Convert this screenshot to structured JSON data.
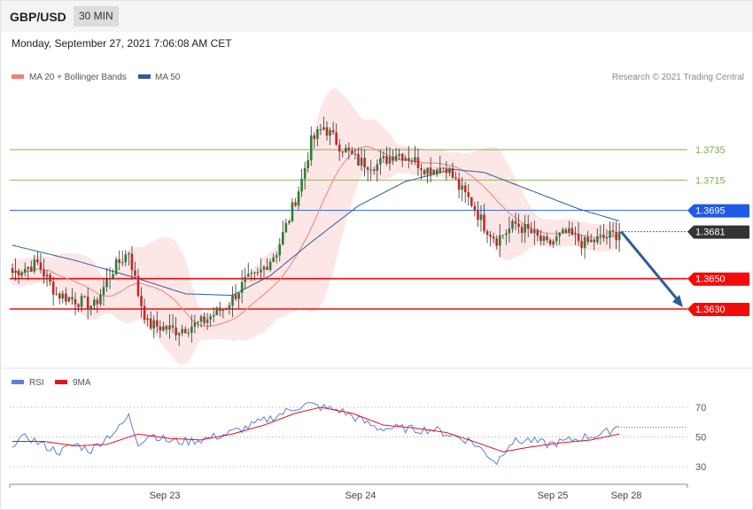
{
  "header": {
    "pair": "GBP/USD",
    "timeframe": "30 MIN"
  },
  "date": "Monday, September 27, 2021 7:06:08 AM CET",
  "legend": {
    "ma20": {
      "label": "MA 20 + Bollinger Bands",
      "color": "#f08080"
    },
    "ma50": {
      "label": "MA 50",
      "color": "#2e5c9a"
    }
  },
  "credit": "Research © 2021 Trading Central",
  "rsi_legend": {
    "rsi": {
      "label": "RSI",
      "color": "#5b7fdb"
    },
    "ma9": {
      "label": "9MA",
      "color": "#e0141e"
    }
  },
  "chart_data": [
    {
      "type": "candlestick",
      "title": "GBP/USD",
      "ylim": [
        1.3585,
        1.3775
      ],
      "x_labels": [
        "Sep 23",
        "Sep 24",
        "Sep 25",
        "Sep 28"
      ],
      "levels": [
        {
          "value": 1.3735,
          "label": "1.3735",
          "kind": "resistance",
          "color": "#7cb342"
        },
        {
          "value": 1.3715,
          "label": "1.3715",
          "kind": "resistance",
          "color": "#7cb342"
        },
        {
          "value": 1.3695,
          "label": "1.3695",
          "kind": "pivot",
          "color": "#1e5ae6"
        },
        {
          "value": 1.3681,
          "label": "1.3681",
          "kind": "last",
          "color": "#333333"
        },
        {
          "value": 1.365,
          "label": "1.3650",
          "kind": "support",
          "color": "#f50a0a"
        },
        {
          "value": 1.363,
          "label": "1.3630",
          "kind": "support",
          "color": "#f50a0a"
        }
      ],
      "anchors": [
        [
          0,
          1.3654
        ],
        [
          8,
          1.366
        ],
        [
          14,
          1.364
        ],
        [
          20,
          1.3636
        ],
        [
          26,
          1.3632
        ],
        [
          32,
          1.3656
        ],
        [
          37,
          1.3668
        ],
        [
          40,
          1.364
        ],
        [
          43,
          1.362
        ],
        [
          52,
          1.3616
        ],
        [
          60,
          1.3621
        ],
        [
          68,
          1.3632
        ],
        [
          74,
          1.3648
        ],
        [
          78,
          1.3652
        ],
        [
          84,
          1.3668
        ],
        [
          88,
          1.369
        ],
        [
          92,
          1.3715
        ],
        [
          95,
          1.374
        ],
        [
          99,
          1.375
        ],
        [
          104,
          1.3738
        ],
        [
          110,
          1.3727
        ],
        [
          116,
          1.3725
        ],
        [
          122,
          1.3733
        ],
        [
          126,
          1.373
        ],
        [
          132,
          1.3722
        ],
        [
          138,
          1.3724
        ],
        [
          142,
          1.371
        ],
        [
          146,
          1.37
        ],
        [
          150,
          1.3685
        ],
        [
          154,
          1.3676
        ],
        [
          160,
          1.3686
        ],
        [
          165,
          1.368
        ],
        [
          170,
          1.3672
        ],
        [
          176,
          1.368
        ],
        [
          182,
          1.3673
        ],
        [
          188,
          1.3677
        ],
        [
          193,
          1.368
        ]
      ],
      "ma50_anchors": [
        [
          0,
          1.3672
        ],
        [
          20,
          1.3662
        ],
        [
          40,
          1.365
        ],
        [
          55,
          1.364
        ],
        [
          70,
          1.3639
        ],
        [
          82,
          1.3652
        ],
        [
          95,
          1.3674
        ],
        [
          110,
          1.3698
        ],
        [
          125,
          1.3714
        ],
        [
          140,
          1.3722
        ],
        [
          150,
          1.372
        ],
        [
          165,
          1.3708
        ],
        [
          180,
          1.3696
        ],
        [
          193,
          1.3688
        ]
      ],
      "arrow": {
        "from": [
          193,
          1.3681
        ],
        "to": [
          210,
          1.363
        ]
      }
    },
    {
      "type": "line",
      "title": "RSI",
      "ylim": [
        20,
        80
      ],
      "yticks": [
        30,
        50,
        70
      ],
      "rsi_anchors": [
        [
          0,
          46
        ],
        [
          5,
          50
        ],
        [
          10,
          44
        ],
        [
          15,
          40
        ],
        [
          20,
          45
        ],
        [
          25,
          41
        ],
        [
          30,
          50
        ],
        [
          34,
          56
        ],
        [
          37,
          64
        ],
        [
          40,
          46
        ],
        [
          44,
          52
        ],
        [
          50,
          47
        ],
        [
          56,
          47
        ],
        [
          62,
          49
        ],
        [
          68,
          52
        ],
        [
          74,
          56
        ],
        [
          80,
          61
        ],
        [
          86,
          66
        ],
        [
          90,
          70
        ],
        [
          94,
          72
        ],
        [
          98,
          70
        ],
        [
          104,
          68
        ],
        [
          110,
          62
        ],
        [
          116,
          56
        ],
        [
          122,
          56
        ],
        [
          128,
          55
        ],
        [
          134,
          55
        ],
        [
          140,
          51
        ],
        [
          146,
          47
        ],
        [
          150,
          40
        ],
        [
          154,
          33
        ],
        [
          158,
          46
        ],
        [
          164,
          48
        ],
        [
          170,
          45
        ],
        [
          176,
          47
        ],
        [
          182,
          50
        ],
        [
          188,
          52
        ],
        [
          193,
          58
        ]
      ],
      "ma9_anchors": [
        [
          0,
          47
        ],
        [
          10,
          47
        ],
        [
          20,
          44
        ],
        [
          30,
          45
        ],
        [
          40,
          52
        ],
        [
          50,
          49
        ],
        [
          60,
          48
        ],
        [
          70,
          52
        ],
        [
          80,
          58
        ],
        [
          90,
          66
        ],
        [
          98,
          70
        ],
        [
          108,
          66
        ],
        [
          118,
          58
        ],
        [
          128,
          56
        ],
        [
          138,
          53
        ],
        [
          148,
          46
        ],
        [
          156,
          40
        ],
        [
          164,
          43
        ],
        [
          174,
          46
        ],
        [
          184,
          48
        ],
        [
          193,
          52
        ]
      ]
    }
  ]
}
